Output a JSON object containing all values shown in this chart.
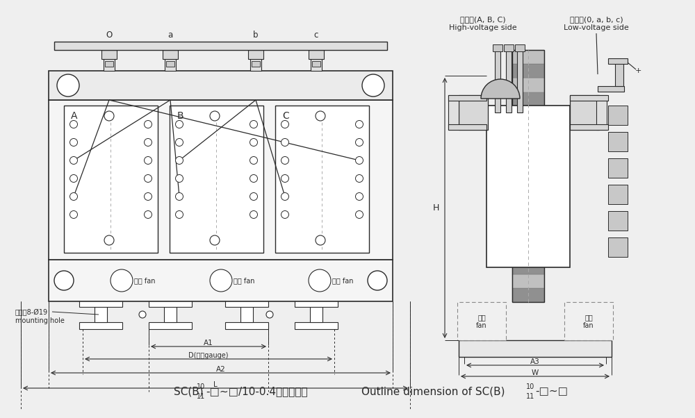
{
  "bg_color": "#efefef",
  "line_color": "#2a2a2a",
  "gray1": "#c8c8c8",
  "gray2": "#b0b0b0",
  "gray3": "#909090",
  "white": "#ffffff",
  "label_O": "O",
  "label_a_top": "a",
  "label_b": "b",
  "label_c": "c",
  "label_A": "A",
  "label_B": "B",
  "label_C": "C",
  "label_fan": "风机 fan",
  "label_A1": "A1",
  "label_A2": "A2",
  "label_A3": "A3",
  "label_D": "D(浜距gauge)",
  "label_L": "L",
  "label_W": "W",
  "label_H": "H",
  "label_mounting": "安装吖8-Ø19\nmounting hole",
  "label_hv": "高压侧(A, B, C)\nHigh-voltage side",
  "label_lv": "低压侧(0, a, b, c)\nLow-voltage side"
}
